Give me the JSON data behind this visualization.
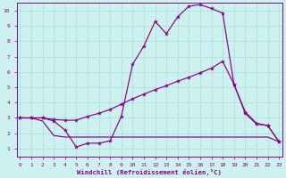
{
  "xlabel": "Windchill (Refroidissement éolien,°C)",
  "xlim": [
    -0.3,
    23.3
  ],
  "ylim": [
    0.5,
    10.5
  ],
  "xticks": [
    0,
    1,
    2,
    3,
    4,
    5,
    6,
    7,
    8,
    9,
    10,
    11,
    12,
    13,
    14,
    15,
    16,
    17,
    18,
    19,
    20,
    21,
    22,
    23
  ],
  "yticks": [
    1,
    2,
    3,
    4,
    5,
    6,
    7,
    8,
    9,
    10
  ],
  "bg_color": "#cdf1ee",
  "line_color": "#880088",
  "grid_color": "#aaddd8",
  "curve1_x": [
    0,
    1,
    2,
    3,
    4,
    5,
    6,
    7,
    8,
    9,
    10,
    11,
    12,
    13,
    14,
    15,
    16,
    17,
    18,
    19,
    20,
    21,
    22,
    23
  ],
  "curve1_y": [
    3.0,
    3.0,
    3.0,
    2.8,
    2.2,
    1.1,
    1.35,
    1.35,
    1.5,
    3.1,
    6.5,
    7.7,
    9.3,
    8.5,
    9.6,
    10.3,
    10.4,
    10.15,
    9.85,
    5.2,
    3.4,
    2.65,
    2.5,
    1.45
  ],
  "curve2_x": [
    0,
    1,
    2,
    3,
    4,
    5,
    6,
    7,
    8,
    9,
    10,
    11,
    12,
    13,
    14,
    15,
    16,
    17,
    18,
    19,
    20,
    21,
    22,
    23
  ],
  "curve2_y": [
    3.0,
    3.0,
    3.0,
    2.9,
    2.85,
    2.85,
    3.1,
    3.3,
    3.55,
    3.9,
    4.25,
    4.55,
    4.85,
    5.1,
    5.4,
    5.65,
    5.95,
    6.25,
    6.7,
    5.2,
    3.3,
    2.6,
    2.5,
    1.45
  ],
  "curve3_x": [
    0,
    1,
    2,
    3,
    4,
    5,
    6,
    7,
    8,
    9,
    10,
    11,
    12,
    13,
    14,
    15,
    16,
    17,
    18,
    19,
    20,
    21,
    22,
    23
  ],
  "curve3_y": [
    3.0,
    3.0,
    2.8,
    1.85,
    1.75,
    1.75,
    1.75,
    1.75,
    1.75,
    1.75,
    1.75,
    1.75,
    1.75,
    1.75,
    1.75,
    1.75,
    1.75,
    1.75,
    1.75,
    1.75,
    1.75,
    1.75,
    1.75,
    1.45
  ]
}
